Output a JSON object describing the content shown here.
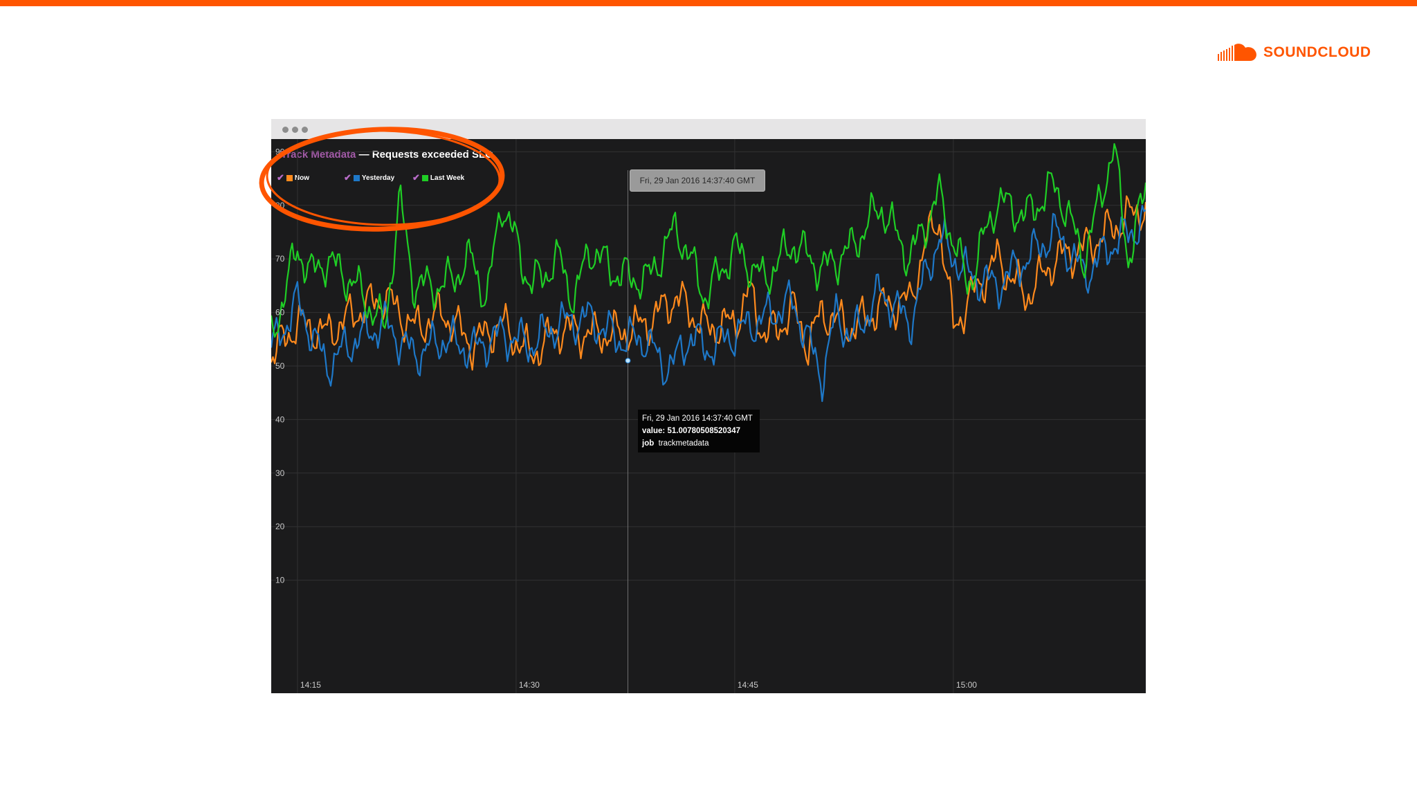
{
  "brand": {
    "name": "SOUNDCLOUD",
    "color": "#ff5500"
  },
  "window": {
    "titlebar_color": "#e6e5e6",
    "background": "#1b1b1c"
  },
  "chart_data": {
    "type": "line",
    "title_part1": "Track Metadata",
    "title_separator": "—",
    "title_part2": "Requests exceeded SLO",
    "ylim": [
      0,
      95
    ],
    "y_ticks": [
      10,
      20,
      30,
      40,
      50,
      60,
      70,
      80,
      90
    ],
    "x_ticks": [
      "14:15",
      "14:30",
      "14:45",
      "15:00"
    ],
    "x_tick_minutes": [
      0,
      15,
      30,
      45
    ],
    "x_range_minutes": [
      -1.8,
      58.2
    ],
    "grid": true,
    "legend_position": "top-left",
    "series": [
      {
        "name": "Now",
        "color": "#ff8a1d",
        "x": [
          -1.8,
          0,
          2,
          4,
          6,
          8,
          10,
          12,
          14,
          16,
          18,
          20,
          22,
          24,
          26,
          28,
          30,
          31,
          32,
          33,
          34,
          35,
          36,
          38,
          40,
          42,
          43,
          44,
          45,
          46,
          48,
          50,
          52,
          54,
          56,
          58.2
        ],
        "y": [
          52,
          58,
          56,
          60,
          63,
          57,
          60,
          54,
          58,
          52,
          57,
          56,
          56,
          58,
          63,
          57,
          58,
          64,
          56,
          57,
          61,
          54,
          60,
          57,
          61,
          62,
          72,
          78,
          57,
          62,
          70,
          63,
          70,
          72,
          76,
          80
        ]
      },
      {
        "name": "Yesterday",
        "color": "#1e78c8",
        "x": [
          -1.8,
          0,
          2,
          4,
          6,
          8,
          10,
          12,
          14,
          16,
          18,
          20,
          22,
          24,
          25,
          26,
          27,
          28,
          30,
          32,
          34,
          36,
          37,
          38,
          40,
          42,
          44,
          46,
          48,
          50,
          52,
          54,
          56,
          58.2
        ],
        "y": [
          53,
          62,
          50,
          55,
          58,
          52,
          55,
          53,
          56,
          54,
          58,
          59,
          55,
          55,
          50,
          51,
          56,
          53,
          56,
          59,
          62,
          48,
          60,
          55,
          64,
          58,
          74,
          67,
          65,
          70,
          75,
          67,
          73,
          77
        ]
      },
      {
        "name": "Last Week",
        "color": "#1fce25",
        "x": [
          -1.8,
          0,
          1,
          2,
          4,
          6,
          7,
          8,
          10,
          12,
          13,
          14,
          16,
          18,
          19,
          20,
          22,
          24,
          26,
          28,
          30,
          32,
          34,
          36,
          38,
          40,
          42,
          44,
          46,
          48,
          50,
          52,
          54,
          56,
          57,
          58.2
        ],
        "y": [
          55,
          72,
          67,
          70,
          65,
          57,
          81,
          65,
          65,
          70,
          62,
          81,
          65,
          70,
          62,
          72,
          67,
          66,
          76,
          63,
          72,
          66,
          73,
          68,
          72,
          80,
          70,
          82,
          65,
          81,
          78,
          84,
          70,
          91,
          70,
          83
        ]
      }
    ]
  },
  "hover": {
    "time_label": "Fri, 29 Jan 2016 14:37:40 GMT",
    "minute": 22.67,
    "value_y": 51
  },
  "tooltip": {
    "time": "Fri, 29 Jan 2016 14:37:40 GMT",
    "value_label": "value:",
    "value": "51.00780508520347",
    "job_label": "job",
    "job": "trackmetadata"
  },
  "annotation_color": "#ff5500"
}
